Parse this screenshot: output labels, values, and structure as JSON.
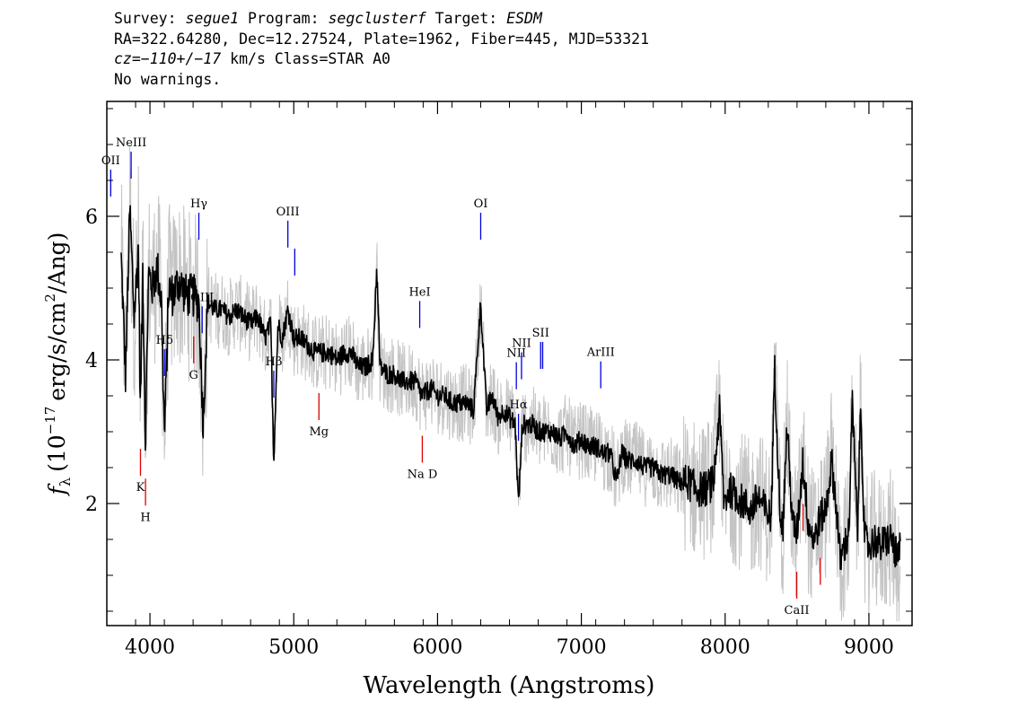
{
  "header": {
    "line1": {
      "survey_label": "Survey:",
      "survey": "segue1",
      "program_label": "Program:",
      "program": "segclusterf",
      "target_label": "Target:",
      "target": "ESDM"
    },
    "line2": "RA=322.64280, Dec=12.27524, Plate=1962, Fiber=445, MJD=53321",
    "line3": {
      "cz": "cz=−110+/−17",
      "rest": "km/s Class=STAR A0"
    },
    "line4": "No warnings."
  },
  "chart_data": {
    "type": "line",
    "xlabel": "Wavelength (Angstroms)",
    "ylabel_parts": {
      "f": "f",
      "sub": "λ",
      "open": "(10",
      "exp1": "−17",
      "mid": "erg/s/cm",
      "exp2": "2",
      "close": "/Ang)"
    },
    "xlim": [
      3700,
      9300
    ],
    "ylim": [
      0.3,
      7.6
    ],
    "x_ticks": [
      4000,
      5000,
      6000,
      7000,
      8000,
      9000
    ],
    "y_ticks": [
      2,
      4,
      6
    ],
    "series": [
      {
        "role": "flux",
        "color": "#000000",
        "x": [
          3800,
          3830,
          3860,
          3890,
          3920,
          3933,
          3950,
          3968,
          3990,
          4020,
          4050,
          4080,
          4101,
          4130,
          4160,
          4200,
          4250,
          4300,
          4340,
          4370,
          4400,
          4450,
          4500,
          4550,
          4600,
          4650,
          4700,
          4750,
          4800,
          4840,
          4861,
          4890,
          4920,
          4960,
          5000,
          5050,
          5100,
          5150,
          5200,
          5250,
          5300,
          5350,
          5400,
          5450,
          5500,
          5550,
          5577,
          5600,
          5650,
          5700,
          5750,
          5800,
          5850,
          5890,
          5950,
          6000,
          6050,
          6100,
          6150,
          6200,
          6250,
          6300,
          6340,
          6380,
          6420,
          6460,
          6500,
          6540,
          6563,
          6590,
          6620,
          6660,
          6700,
          6750,
          6800,
          6850,
          6900,
          6950,
          7000,
          7050,
          7100,
          7150,
          7200,
          7246,
          7280,
          7320,
          7380,
          7440,
          7500,
          7560,
          7620,
          7680,
          7740,
          7800,
          7860,
          7920,
          7960,
          7993,
          8030,
          8080,
          8130,
          8180,
          8230,
          8280,
          8320,
          8344,
          8380,
          8400,
          8430,
          8470,
          8500,
          8540,
          8580,
          8620,
          8660,
          8700,
          8740,
          8780,
          8800,
          8830,
          8860,
          8885,
          8920,
          8943,
          8970,
          9000,
          9040,
          9080,
          9120,
          9160,
          9200,
          9220
        ],
        "y": [
          5.4,
          3.8,
          6.1,
          4.6,
          5.6,
          3.2,
          5.3,
          2.8,
          5.2,
          5.0,
          5.3,
          4.8,
          2.9,
          5.0,
          4.9,
          5.1,
          4.9,
          4.9,
          4.8,
          3.1,
          4.8,
          4.7,
          4.7,
          4.6,
          4.7,
          4.6,
          4.5,
          4.6,
          4.3,
          4.5,
          2.6,
          4.5,
          4.3,
          4.7,
          4.3,
          4.3,
          4.2,
          4.1,
          4.1,
          4.1,
          4.0,
          4.1,
          4.1,
          3.9,
          3.9,
          4.0,
          5.3,
          3.9,
          3.8,
          3.8,
          3.7,
          3.7,
          3.7,
          3.5,
          3.6,
          3.5,
          3.5,
          3.4,
          3.4,
          3.4,
          3.3,
          4.8,
          3.3,
          3.5,
          3.2,
          3.3,
          3.2,
          3.1,
          2.0,
          3.1,
          3.1,
          3.1,
          3.0,
          3.0,
          3.0,
          2.9,
          3.0,
          2.8,
          2.9,
          2.8,
          2.8,
          2.7,
          2.7,
          2.3,
          2.7,
          2.6,
          2.6,
          2.5,
          2.5,
          2.4,
          2.4,
          2.3,
          2.3,
          2.2,
          2.2,
          2.3,
          3.3,
          2.0,
          2.2,
          2.1,
          2.0,
          1.9,
          2.1,
          1.9,
          1.8,
          3.9,
          2.0,
          1.6,
          3.1,
          1.7,
          1.6,
          2.6,
          1.7,
          1.5,
          1.8,
          1.9,
          2.6,
          1.8,
          1.2,
          1.4,
          1.6,
          3.4,
          1.6,
          3.4,
          1.5,
          1.4,
          1.5,
          1.4,
          1.5,
          1.5,
          1.2,
          1.4
        ]
      },
      {
        "role": "uncertainty band",
        "color": "#c4c4c4"
      }
    ],
    "line_labels": [
      {
        "label": "NeIII",
        "x": 3869,
        "group": "emission",
        "label_pos": "top"
      },
      {
        "label": "OII",
        "x": 3727,
        "group": "emission",
        "label_pos": "top"
      },
      {
        "label": "Hδ",
        "x": 4101,
        "group": "emission",
        "label_pos": "top"
      },
      {
        "label": "Hγ",
        "x": 4340,
        "group": "emission",
        "label_pos": "top"
      },
      {
        "label": "OIII",
        "x": 4363,
        "group": "emission",
        "label_pos": "top"
      },
      {
        "label": "Hβ",
        "x": 4861,
        "group": "emission",
        "label_pos": "top"
      },
      {
        "label": "OIII",
        "x": 4959,
        "group": "emission",
        "label_pos": "top"
      },
      {
        "label": "OIII",
        "x": 5007,
        "group": "emission",
        "label_pos": "none"
      },
      {
        "label": "HeI",
        "x": 5876,
        "group": "emission",
        "label_pos": "top"
      },
      {
        "label": "OI",
        "x": 6300,
        "group": "emission",
        "label_pos": "top"
      },
      {
        "label": "NII",
        "x": 6548,
        "group": "emission",
        "label_pos": "top"
      },
      {
        "label": "Hα",
        "x": 6563,
        "group": "emission",
        "label_pos": "top"
      },
      {
        "label": "NII",
        "x": 6584,
        "group": "emission",
        "label_pos": "top"
      },
      {
        "label": "SII",
        "x": 6717,
        "group": "emission",
        "label_pos": "top"
      },
      {
        "label": "SII",
        "x": 6731,
        "group": "emission",
        "label_pos": "none"
      },
      {
        "label": "ArIII",
        "x": 7135,
        "group": "emission",
        "label_pos": "top"
      },
      {
        "label": "K",
        "x": 3934,
        "group": "absorption",
        "label_pos": "bottom"
      },
      {
        "label": "H",
        "x": 3969,
        "group": "absorption",
        "label_pos": "bottom"
      },
      {
        "label": "G",
        "x": 4304,
        "group": "absorption",
        "label_pos": "bottom"
      },
      {
        "label": "Mg",
        "x": 5175,
        "group": "absorption",
        "label_pos": "bottom"
      },
      {
        "label": "Na D",
        "x": 5894,
        "group": "absorption",
        "label_pos": "bottom"
      },
      {
        "label": "CaII",
        "x": 8498,
        "group": "absorption",
        "label_pos": "bottom"
      },
      {
        "label": "CaII",
        "x": 8542,
        "group": "absorption",
        "label_pos": "none"
      },
      {
        "label": "CaII",
        "x": 8662,
        "group": "absorption",
        "label_pos": "none"
      }
    ],
    "colors": {
      "emission": "#0000dd",
      "absorption": "#dd0000",
      "flux": "#000000",
      "band": "#c4c4c4"
    }
  }
}
